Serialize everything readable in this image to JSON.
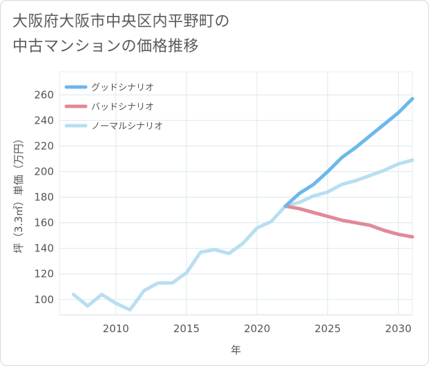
{
  "title": {
    "line1": "大阪府大阪市中央区内平野町の",
    "line2": "中古マンションの価格推移"
  },
  "chart_data": {
    "type": "line",
    "title": "大阪府大阪市中央区内平野町の中古マンションの価格推移",
    "xlabel": "年",
    "ylabel": "坪（3.3㎡）単価（万円）",
    "xlim": [
      2006,
      2031
    ],
    "ylim": [
      88,
      278
    ],
    "x_ticks": [
      2010,
      2015,
      2020,
      2025,
      2030
    ],
    "y_ticks": [
      100,
      120,
      140,
      160,
      180,
      200,
      220,
      240,
      260
    ],
    "grid": true,
    "legend_position": "top-left",
    "series": [
      {
        "name": "グッドシナリオ",
        "color": "#6cb8ea",
        "x": [
          2022,
          2023,
          2024,
          2025,
          2026,
          2027,
          2028,
          2029,
          2030,
          2031
        ],
        "values": [
          173,
          183,
          190,
          200,
          211,
          219,
          228,
          237,
          246,
          257
        ]
      },
      {
        "name": "バッドシナリオ",
        "color": "#e08a96",
        "x": [
          2022,
          2023,
          2024,
          2025,
          2026,
          2027,
          2028,
          2029,
          2030,
          2031
        ],
        "values": [
          173,
          171,
          168,
          165,
          162,
          160,
          158,
          154,
          151,
          149
        ]
      },
      {
        "name": "ノーマルシナリオ",
        "color": "#b8dff0",
        "x": [
          2007,
          2008,
          2009,
          2010,
          2011,
          2012,
          2013,
          2014,
          2015,
          2016,
          2017,
          2018,
          2019,
          2020,
          2021,
          2022,
          2023,
          2024,
          2025,
          2026,
          2027,
          2028,
          2029,
          2030,
          2031
        ],
        "values": [
          104,
          95,
          104,
          97,
          92,
          107,
          113,
          113,
          121,
          137,
          139,
          136,
          144,
          156,
          161,
          173,
          176,
          181,
          184,
          190,
          193,
          197,
          201,
          206,
          209
        ]
      }
    ]
  }
}
